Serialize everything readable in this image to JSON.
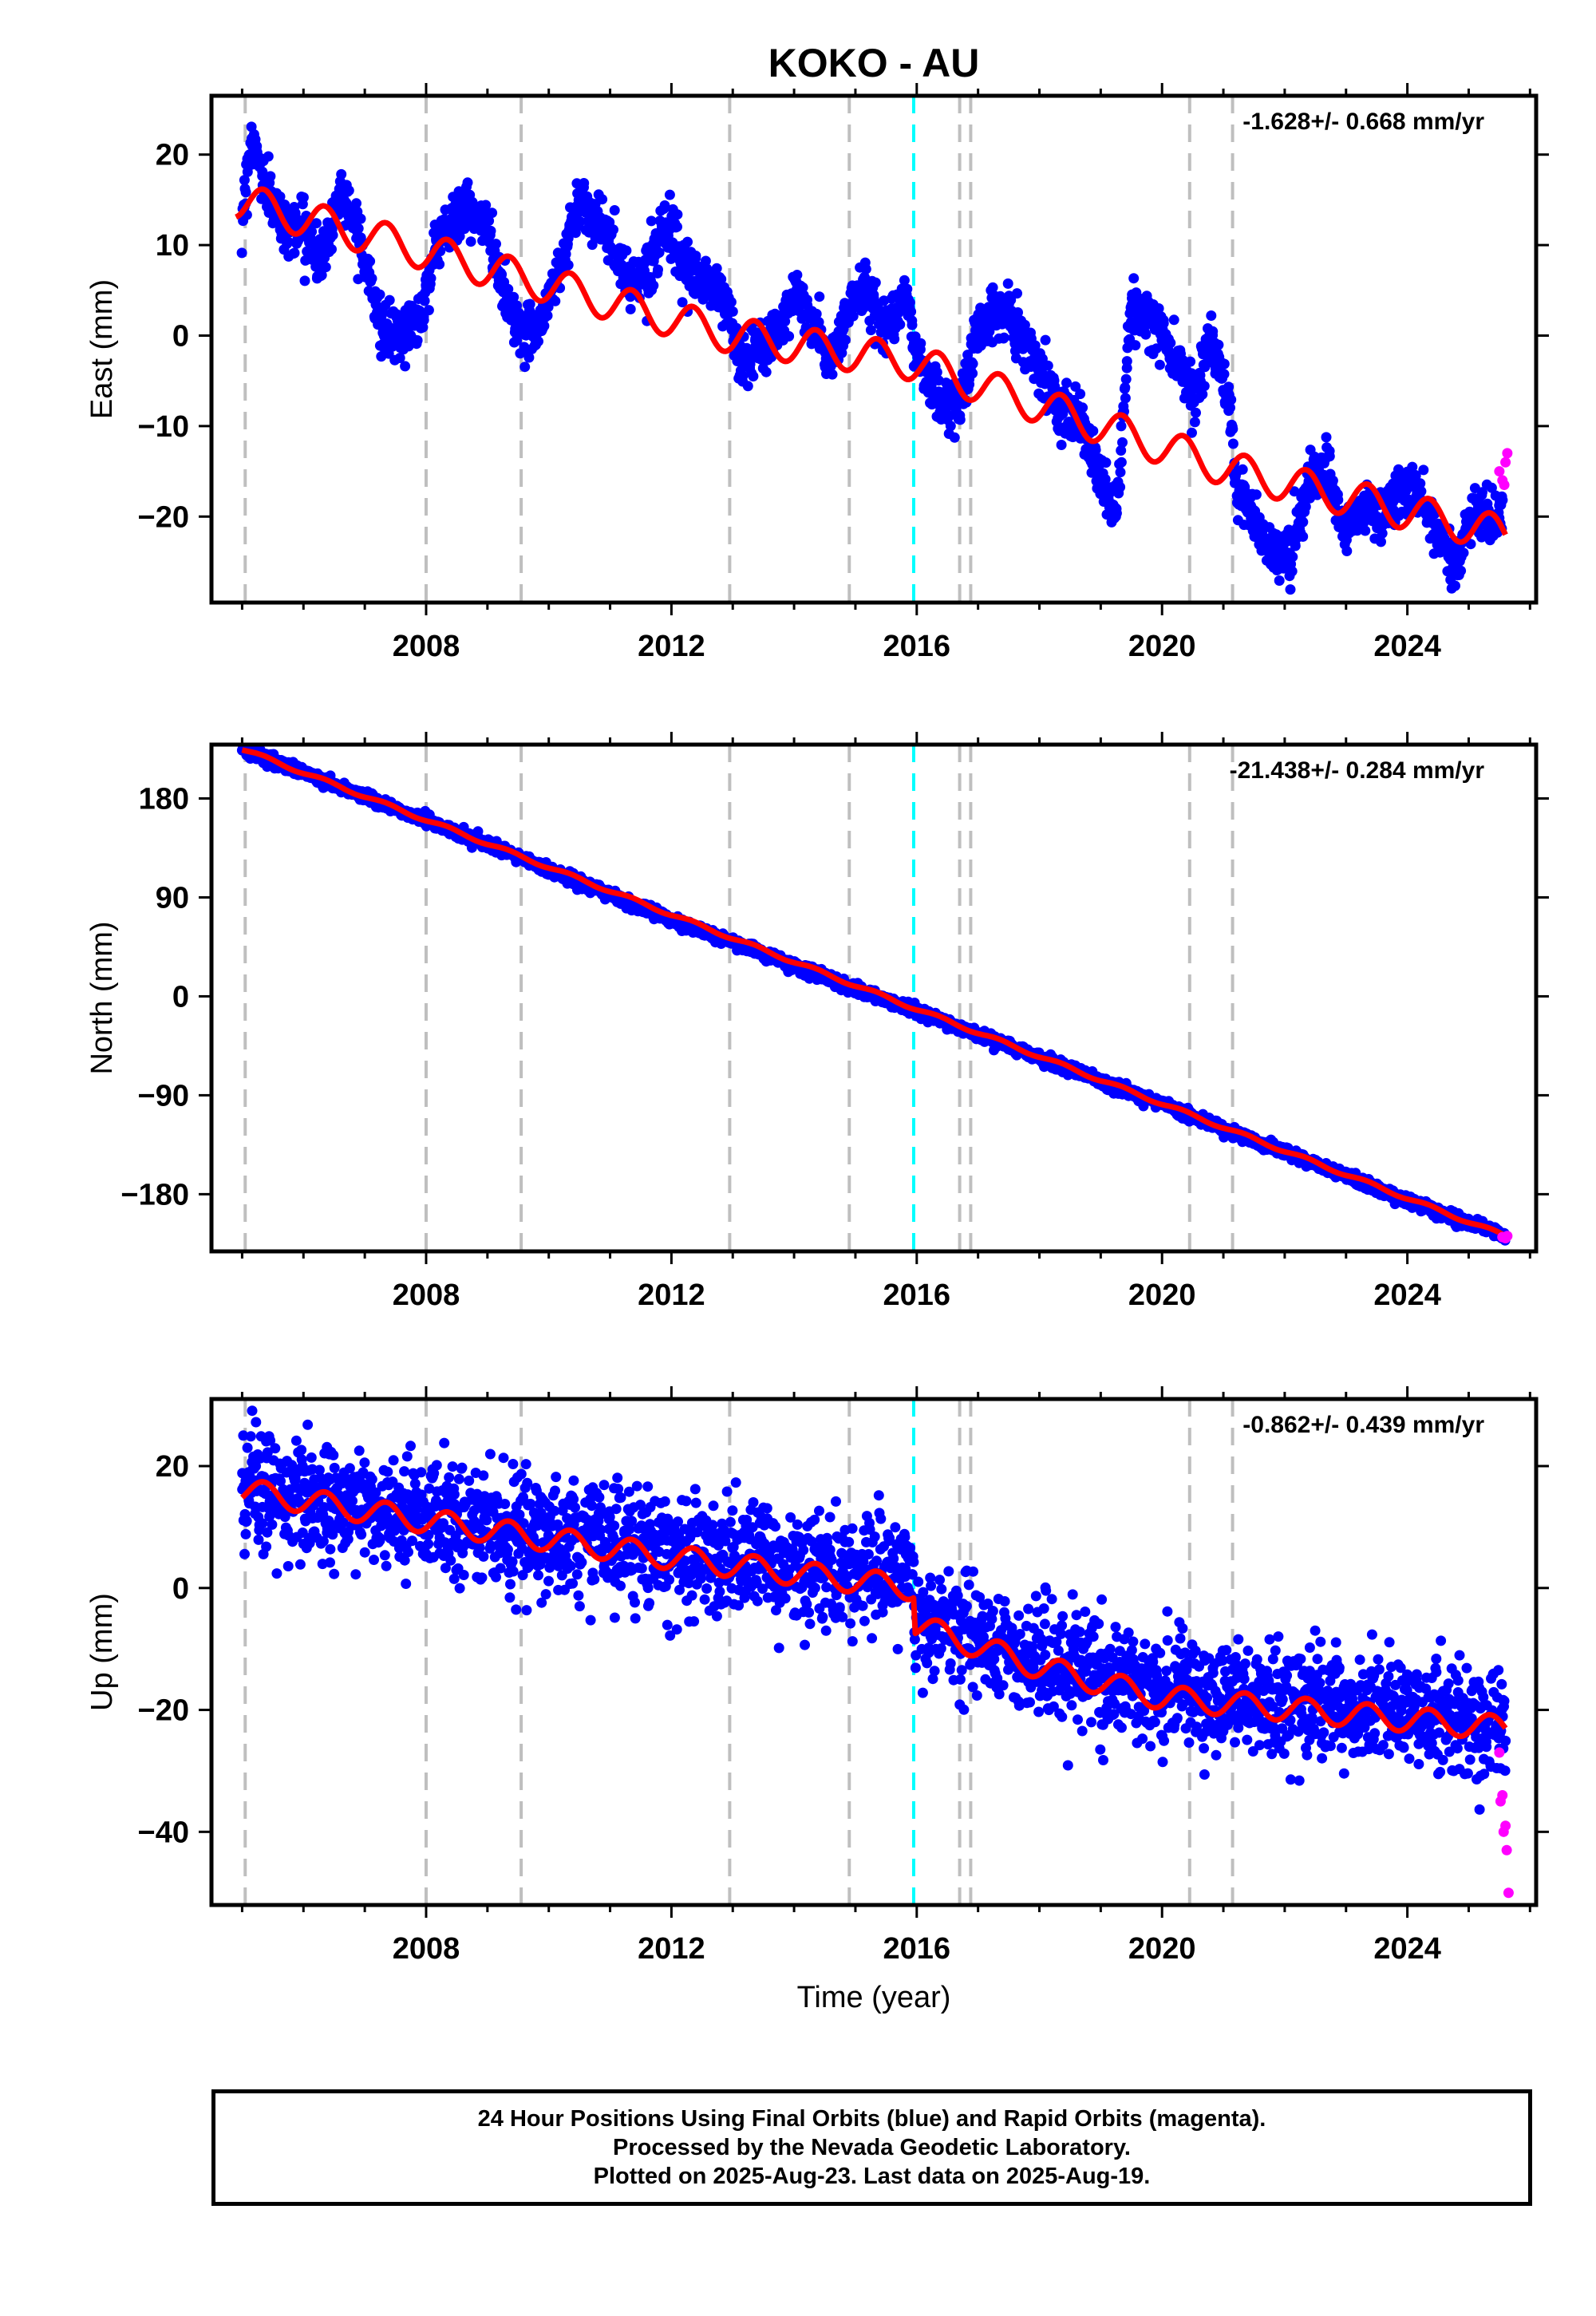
{
  "title": "KOKO - AU",
  "xlabel": "Time (year)",
  "colors": {
    "final_orbits": "#0000ff",
    "rapid_orbits": "#ff00ff",
    "model_fit": "#ff0000",
    "equipment_change": "#bfbfbf",
    "earthquake": "#00ffff"
  },
  "footer": {
    "line1": "24 Hour Positions Using Final Orbits (blue) and Rapid Orbits (magenta).",
    "line2": "Processed by the Nevada Geodetic Laboratory.",
    "line3": "Plotted on 2025-Aug-23. Last data on 2025-Aug-19."
  },
  "chart_data": [
    {
      "type": "scatter",
      "component": "east",
      "ylabel": "East (mm)",
      "rate_label": "-1.628+/- 0.668 mm/yr",
      "xlim": [
        2004.5,
        2026.1
      ],
      "ylim": [
        -29.5,
        26.5
      ],
      "xticks": [
        2008,
        2012,
        2016,
        2020,
        2024
      ],
      "yticks": [
        20,
        10,
        0,
        -10,
        -20
      ],
      "ytick_labels": [
        "20",
        "10",
        "0",
        "−10",
        "−20"
      ],
      "noise": 1.4,
      "envelope": [
        [
          2005.0,
          13
        ],
        [
          2005.15,
          22
        ],
        [
          2005.4,
          16
        ],
        [
          2005.7,
          12
        ],
        [
          2006.0,
          12
        ],
        [
          2006.3,
          8
        ],
        [
          2006.6,
          16
        ],
        [
          2006.9,
          12
        ],
        [
          2007.3,
          0
        ],
        [
          2007.6,
          0
        ],
        [
          2007.9,
          2
        ],
        [
          2008.2,
          11
        ],
        [
          2008.6,
          14
        ],
        [
          2009.0,
          12
        ],
        [
          2009.3,
          4
        ],
        [
          2009.6,
          0
        ],
        [
          2009.9,
          2
        ],
        [
          2010.2,
          8
        ],
        [
          2010.5,
          15
        ],
        [
          2010.9,
          12
        ],
        [
          2011.3,
          6
        ],
        [
          2011.6,
          7
        ],
        [
          2011.9,
          13
        ],
        [
          2012.2,
          7
        ],
        [
          2012.6,
          6
        ],
        [
          2012.95,
          3
        ],
        [
          2013.1,
          -3
        ],
        [
          2013.4,
          -2
        ],
        [
          2013.7,
          0
        ],
        [
          2014.0,
          5
        ],
        [
          2014.3,
          1
        ],
        [
          2014.6,
          -3
        ],
        [
          2014.95,
          4
        ],
        [
          2015.2,
          5
        ],
        [
          2015.5,
          1
        ],
        [
          2015.8,
          5
        ],
        [
          2015.95,
          -1
        ],
        [
          2016.2,
          -5
        ],
        [
          2016.5,
          -8
        ],
        [
          2016.75,
          -7
        ],
        [
          2016.95,
          0
        ],
        [
          2017.2,
          2
        ],
        [
          2017.5,
          3
        ],
        [
          2017.8,
          -1
        ],
        [
          2018.1,
          -5
        ],
        [
          2018.4,
          -8
        ],
        [
          2018.7,
          -10
        ],
        [
          2019.0,
          -16
        ],
        [
          2019.25,
          -20
        ],
        [
          2019.5,
          3
        ],
        [
          2019.9,
          1
        ],
        [
          2020.3,
          -3
        ],
        [
          2020.5,
          -7
        ],
        [
          2020.8,
          0
        ],
        [
          2021.1,
          -7
        ],
        [
          2021.2,
          -17
        ],
        [
          2021.5,
          -20
        ],
        [
          2021.8,
          -24
        ],
        [
          2022.1,
          -24
        ],
        [
          2022.4,
          -16
        ],
        [
          2022.7,
          -15
        ],
        [
          2023.0,
          -22
        ],
        [
          2023.3,
          -19
        ],
        [
          2023.6,
          -20
        ],
        [
          2023.9,
          -17
        ],
        [
          2024.2,
          -18
        ],
        [
          2024.5,
          -22
        ],
        [
          2024.8,
          -25
        ],
        [
          2025.1,
          -19
        ],
        [
          2025.4,
          -21
        ],
        [
          2025.55,
          -19
        ]
      ],
      "model_steps": [
        [
          2004.9,
          15
        ],
        [
          2013.0,
          0
        ],
        [
          2016.0,
          -3
        ],
        [
          2016.8,
          -5
        ],
        [
          2021.2,
          -15
        ],
        [
          2025.6,
          -22
        ]
      ],
      "annual_amplitude": 2.0,
      "offsets_x": [
        2005.05,
        2008.0,
        2009.55,
        2012.95,
        2014.9,
        2016.7,
        2016.88,
        2020.45,
        2021.15
      ],
      "offset_jumps": [
        0,
        0,
        0,
        0,
        0,
        0,
        0,
        0,
        0
      ],
      "earthquake_x": [
        2015.95
      ],
      "rapid": [
        [
          2025.5,
          -15
        ],
        [
          2025.55,
          -16
        ],
        [
          2025.6,
          -14
        ],
        [
          2025.63,
          -13
        ],
        [
          2025.58,
          -16.5
        ]
      ]
    },
    {
      "type": "scatter",
      "component": "north",
      "ylabel": "North (mm)",
      "rate_label": "-21.438+/- 0.284 mm/yr",
      "xlim": [
        2004.5,
        2026.1
      ],
      "ylim": [
        -232,
        229
      ],
      "xticks": [
        2008,
        2012,
        2016,
        2020,
        2024
      ],
      "yticks": [
        180,
        90,
        0,
        -90,
        -180
      ],
      "ytick_labels": [
        "180",
        "90",
        "0",
        "−90",
        "−180"
      ],
      "noise": 2.5,
      "envelope": [
        [
          2005.0,
          225
        ],
        [
          2008.0,
          160
        ],
        [
          2012.0,
          70
        ],
        [
          2016.0,
          -14
        ],
        [
          2020.0,
          -98
        ],
        [
          2024.0,
          -186
        ],
        [
          2025.6,
          -218
        ]
      ],
      "model_steps": [
        [
          2005.0,
          225
        ],
        [
          2025.6,
          -218
        ]
      ],
      "annual_amplitude": 1.5,
      "offsets_x": [
        2005.05,
        2008.0,
        2009.55,
        2012.95,
        2014.9,
        2016.7,
        2016.88,
        2020.45,
        2021.15
      ],
      "offset_jumps": [
        0,
        0,
        0,
        0,
        0,
        0,
        0,
        0,
        0
      ],
      "earthquake_x": [
        2015.95
      ],
      "rapid": [
        [
          2025.55,
          -219
        ],
        [
          2025.6,
          -220
        ],
        [
          2025.63,
          -218
        ]
      ]
    },
    {
      "type": "scatter",
      "component": "up",
      "ylabel": "Up (mm)",
      "rate_label": "-0.862+/- 0.439 mm/yr",
      "xlim": [
        2004.5,
        2026.1
      ],
      "ylim": [
        -52,
        31
      ],
      "xticks": [
        2008,
        2012,
        2016,
        2020,
        2024
      ],
      "yticks": [
        20,
        0,
        -20,
        -40
      ],
      "ytick_labels": [
        "20",
        "0",
        "−20",
        "−40"
      ],
      "noise": 4.5,
      "envelope": [
        [
          2005.0,
          16
        ],
        [
          2008.0,
          12
        ],
        [
          2012.0,
          6
        ],
        [
          2015.95,
          2
        ],
        [
          2015.96,
          -4
        ],
        [
          2018.0,
          -12
        ],
        [
          2020.0,
          -17
        ],
        [
          2025.6,
          -22
        ]
      ],
      "model_steps": [
        [
          2005.0,
          16
        ],
        [
          2008.0,
          11
        ],
        [
          2012.0,
          5
        ],
        [
          2015.95,
          0
        ],
        [
          2015.96,
          -6
        ],
        [
          2018.0,
          -13
        ],
        [
          2020.0,
          -18
        ],
        [
          2025.6,
          -23
        ]
      ],
      "annual_amplitude": 2.0,
      "offsets_x": [
        2005.05,
        2008.0,
        2009.55,
        2012.95,
        2014.9,
        2016.7,
        2016.88,
        2020.45,
        2021.15
      ],
      "offset_jumps": [
        0,
        0,
        0,
        0,
        0,
        0,
        0,
        0,
        0
      ],
      "earthquake_x": [
        2015.95
      ],
      "rapid": [
        [
          2025.5,
          -27
        ],
        [
          2025.52,
          -35
        ],
        [
          2025.55,
          -34
        ],
        [
          2025.57,
          -40
        ],
        [
          2025.6,
          -39
        ],
        [
          2025.62,
          -43
        ],
        [
          2025.65,
          -50
        ]
      ]
    }
  ]
}
